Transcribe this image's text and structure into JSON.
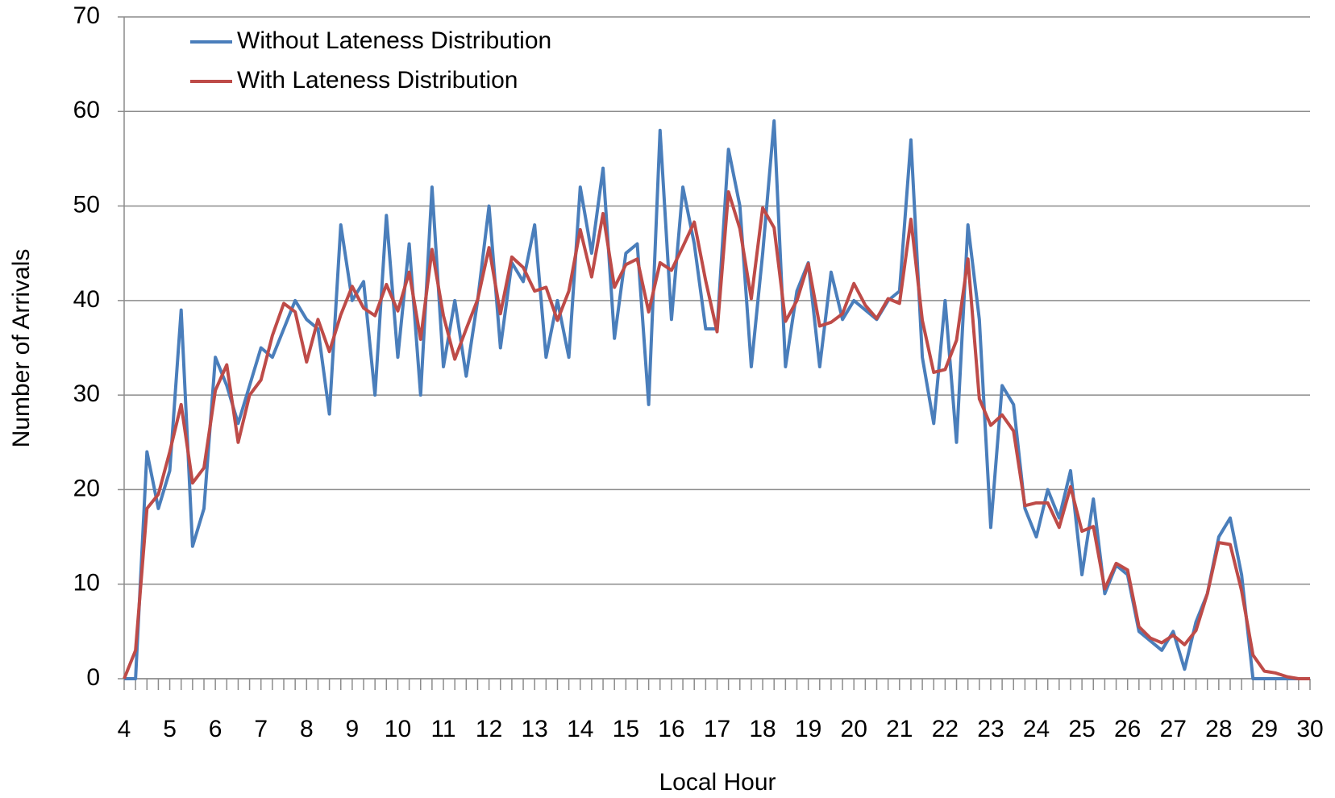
{
  "chart_data": {
    "type": "line",
    "x_label": "Local Hour",
    "y_label": "Number of Arrivals",
    "x": [
      4,
      4.25,
      4.5,
      4.75,
      5,
      5.25,
      5.5,
      5.75,
      6,
      6.25,
      6.5,
      6.75,
      7,
      7.25,
      7.5,
      7.75,
      8,
      8.25,
      8.5,
      8.75,
      9,
      9.25,
      9.5,
      9.75,
      10,
      10.25,
      10.5,
      10.75,
      11,
      11.25,
      11.5,
      11.75,
      12,
      12.25,
      12.5,
      12.75,
      13,
      13.25,
      13.5,
      13.75,
      14,
      14.25,
      14.5,
      14.75,
      15,
      15.25,
      15.5,
      15.75,
      16,
      16.25,
      16.5,
      16.75,
      17,
      17.25,
      17.5,
      17.75,
      18,
      18.25,
      18.5,
      18.75,
      19,
      19.25,
      19.5,
      19.75,
      20,
      20.25,
      20.5,
      20.75,
      21,
      21.25,
      21.5,
      21.75,
      22,
      22.25,
      22.5,
      22.75,
      23,
      23.25,
      23.5,
      23.75,
      24,
      24.25,
      24.5,
      24.75,
      25,
      25.25,
      25.5,
      25.75,
      26,
      26.25,
      26.5,
      26.75,
      27,
      27.25,
      27.5,
      27.75,
      28,
      28.25,
      28.5,
      28.75,
      29,
      29.25,
      29.5,
      29.75,
      30
    ],
    "series": [
      {
        "name": "Without Lateness Distribution",
        "color": "#4a7ebb",
        "values": [
          0,
          0,
          24,
          18,
          22,
          39,
          14,
          18,
          34,
          31,
          27,
          31,
          35,
          34,
          37,
          40,
          38,
          37,
          28,
          48,
          40,
          42,
          30,
          49,
          34,
          46,
          30,
          52,
          33,
          40,
          32,
          40,
          50,
          35,
          44,
          42,
          48,
          34,
          40,
          34,
          52,
          45,
          54,
          36,
          45,
          46,
          29,
          58,
          38,
          52,
          46,
          37,
          37,
          56,
          50,
          33,
          45,
          59,
          33,
          41,
          44,
          33,
          43,
          38,
          40,
          39,
          38,
          40,
          41,
          57,
          34,
          27,
          40,
          25,
          48,
          38,
          16,
          31,
          29,
          18,
          15,
          20,
          17,
          22,
          11,
          19,
          9,
          12,
          11,
          5,
          4,
          3,
          5,
          1,
          6,
          9,
          15,
          17,
          11,
          0,
          0,
          0,
          0,
          0,
          0
        ]
      },
      {
        "name": "With Lateness Distribution",
        "color": "#be4b48",
        "values": [
          0,
          3,
          18,
          19.5,
          24,
          29,
          20.7,
          22.3,
          30.5,
          33.2,
          25,
          30,
          31.6,
          36.3,
          39.7,
          38.8,
          33.5,
          38,
          34.6,
          38.5,
          41.5,
          39.2,
          38.4,
          41.7,
          38.9,
          43,
          35.9,
          45.4,
          38.4,
          33.8,
          37,
          40.1,
          45.6,
          38.6,
          44.6,
          43.5,
          41,
          41.4,
          37.9,
          41,
          47.5,
          42.5,
          49.2,
          41.4,
          43.8,
          44.4,
          38.8,
          44,
          43.2,
          45.7,
          48.3,
          42.1,
          36.7,
          51.5,
          47.6,
          40.2,
          49.8,
          47.7,
          37.8,
          40,
          43.9,
          37.3,
          37.7,
          38.6,
          41.8,
          39.5,
          38.1,
          40.2,
          39.7,
          48.6,
          37.9,
          32.4,
          32.7,
          35.8,
          44.4,
          29.6,
          26.8,
          27.9,
          26.2,
          18.3,
          18.6,
          18.6,
          16,
          20.3,
          15.6,
          16.1,
          9.5,
          12.2,
          11.5,
          5.5,
          4.3,
          3.8,
          4.6,
          3.6,
          5.1,
          9,
          14.4,
          14.2,
          9.3,
          2.5,
          0.8,
          0.6,
          0.2,
          0,
          0
        ]
      }
    ],
    "xlim": [
      4,
      30
    ],
    "xticks": [
      4,
      5,
      6,
      7,
      8,
      9,
      10,
      11,
      12,
      13,
      14,
      15,
      16,
      17,
      18,
      19,
      20,
      21,
      22,
      23,
      24,
      25,
      26,
      27,
      28,
      29,
      30
    ],
    "ylim": [
      0,
      70
    ],
    "yticks": [
      0,
      10,
      20,
      30,
      40,
      50,
      60,
      70
    ],
    "grid": true,
    "legend": "top-left"
  }
}
